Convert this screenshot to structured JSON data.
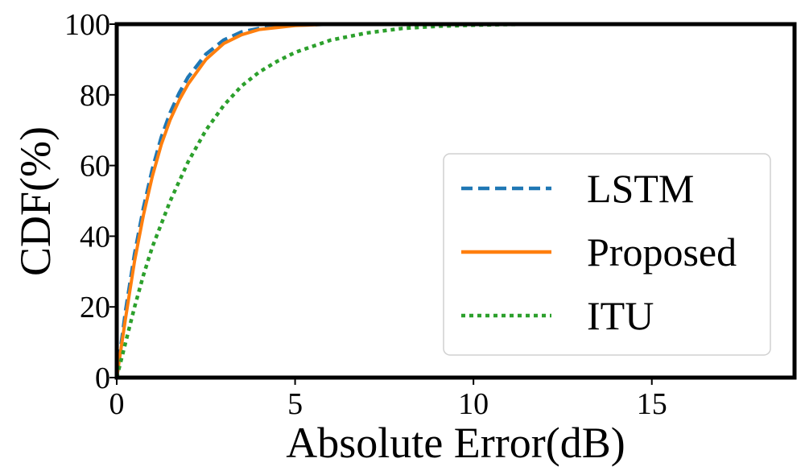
{
  "chart_data": {
    "type": "line",
    "title": "",
    "xlabel": "Absolute Error(dB)",
    "ylabel": "CDF(%)",
    "xlim": [
      0,
      19
    ],
    "ylim": [
      0,
      100
    ],
    "xticks": [
      0,
      5,
      10,
      15
    ],
    "yticks": [
      0,
      20,
      40,
      60,
      80,
      100
    ],
    "xtick_labels": [
      "0",
      "5",
      "10",
      "15"
    ],
    "ytick_labels": [
      "0",
      "20",
      "40",
      "60",
      "80",
      "100"
    ],
    "grid": false,
    "legend_position": "lower-right",
    "series": [
      {
        "name": "LSTM",
        "color": "#1f77b4",
        "style": "dashed",
        "x": [
          0,
          0.25,
          0.5,
          0.75,
          1,
          1.25,
          1.5,
          1.75,
          2,
          2.5,
          3,
          3.5,
          4,
          5,
          6,
          7
        ],
        "y": [
          0,
          19,
          35,
          48,
          59,
          68,
          75,
          80.5,
          85,
          91.5,
          95.5,
          97.8,
          98.8,
          99.7,
          100,
          100
        ]
      },
      {
        "name": "Proposed",
        "color": "#ff7f0e",
        "style": "solid",
        "x": [
          0,
          0.25,
          0.5,
          0.75,
          1,
          1.25,
          1.5,
          1.75,
          2,
          2.5,
          3,
          3.5,
          4,
          5,
          6,
          7
        ],
        "y": [
          0,
          17,
          33,
          46,
          57,
          66,
          73,
          78.5,
          83,
          90,
          94.5,
          97,
          98.5,
          99.6,
          100,
          100
        ]
      },
      {
        "name": "ITU",
        "color": "#2ca02c",
        "style": "dotted",
        "x": [
          0,
          0.25,
          0.5,
          0.75,
          1,
          1.5,
          2,
          2.5,
          3,
          3.5,
          4,
          4.5,
          5,
          6,
          7,
          8,
          9,
          10,
          11,
          12,
          12.5
        ],
        "y": [
          0,
          10,
          20,
          29,
          37,
          50,
          61,
          70,
          77,
          82.5,
          86.5,
          89.5,
          92,
          95.5,
          97.5,
          98.8,
          99.4,
          99.7,
          99.9,
          100,
          100
        ]
      }
    ]
  }
}
